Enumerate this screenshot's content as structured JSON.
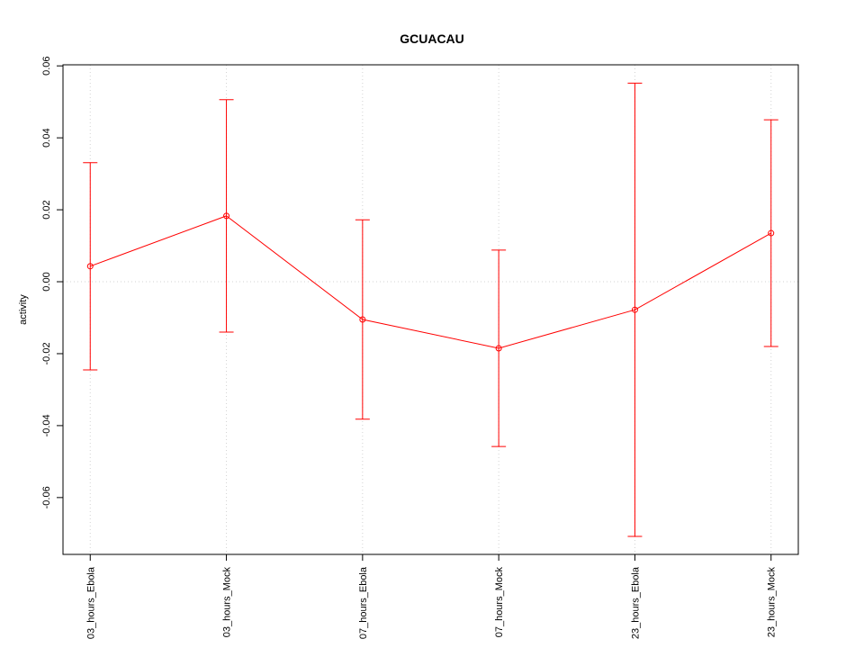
{
  "chart_data": {
    "type": "errorbar_line",
    "title": "GCUACAU",
    "y_label": "activity",
    "categories": [
      "03_hours_Ebola",
      "03_hours_Mock",
      "07_hours_Ebola",
      "07_hours_Mock",
      "23_hours_Ebola",
      "23_hours_Mock"
    ],
    "series": [
      {
        "name": "activity",
        "color": "#ff0000",
        "values": [
          0.0043,
          0.0183,
          -0.0105,
          -0.0185,
          -0.0078,
          0.0135
        ],
        "errors": [
          0.0288,
          0.0323,
          0.0277,
          0.0273,
          0.063,
          0.0315
        ]
      }
    ],
    "ylim": [
      -0.0758,
      0.0603
    ],
    "yticks": [
      -0.06,
      -0.04,
      -0.02,
      {
        "value": 0,
        "label": "0.00"
      },
      0.02,
      0.04,
      0.06
    ],
    "grid": true,
    "hline": 0
  }
}
